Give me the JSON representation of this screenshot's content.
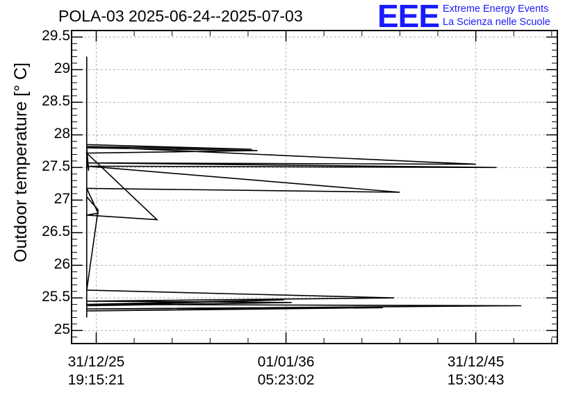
{
  "chart_data": {
    "type": "line",
    "title": "POLA-03 2025-06-24--2025-07-03",
    "ylabel": "Outdoor temperature [° C]",
    "xlabel": "",
    "ylim": [
      24.8,
      29.6
    ],
    "grid": true,
    "yticks": [
      "25",
      "25.5",
      "26",
      "26.5",
      "27",
      "27.5",
      "28",
      "28.5",
      "29",
      "29.5"
    ],
    "xticks": [
      {
        "date": "31/12/25",
        "time": "19:15:21"
      },
      {
        "date": "01/01/36",
        "time": "05:23:02"
      },
      {
        "date": "31/12/45",
        "time": "15:30:43"
      }
    ],
    "xlim_years": [
      2024.7,
      2050.3
    ],
    "series": [
      {
        "color": "#000000",
        "x_years": [
          2025.5,
          2025.5,
          2025.6,
          2025.5,
          2034.5,
          2025.5,
          2029.2,
          2025.5,
          2026.1,
          2025.5,
          2042.0,
          2025.5,
          2047.1,
          2025.5,
          2046.0,
          2025.5,
          2034.2,
          2025.5,
          2025.5,
          2026.1,
          2025.5,
          2041.7,
          2025.5,
          2036.3,
          2025.5,
          2035.9,
          2025.5,
          2048.4,
          2025.5,
          2041.1,
          2025.5,
          2025.5
        ],
        "y": [
          25.2,
          27.6,
          27.45,
          27.8,
          27.76,
          27.72,
          26.7,
          26.77,
          26.8,
          27.18,
          27.12,
          27.52,
          27.5,
          27.57,
          27.55,
          27.82,
          27.78,
          27.85,
          27.05,
          26.85,
          25.62,
          25.5,
          25.45,
          25.43,
          25.38,
          25.47,
          25.4,
          25.38,
          25.33,
          25.35,
          25.3,
          29.2
        ]
      }
    ]
  },
  "logo": {
    "mark": "EEE",
    "line1": "Extreme Energy Events",
    "line2": "La Scienza nelle Scuole"
  }
}
